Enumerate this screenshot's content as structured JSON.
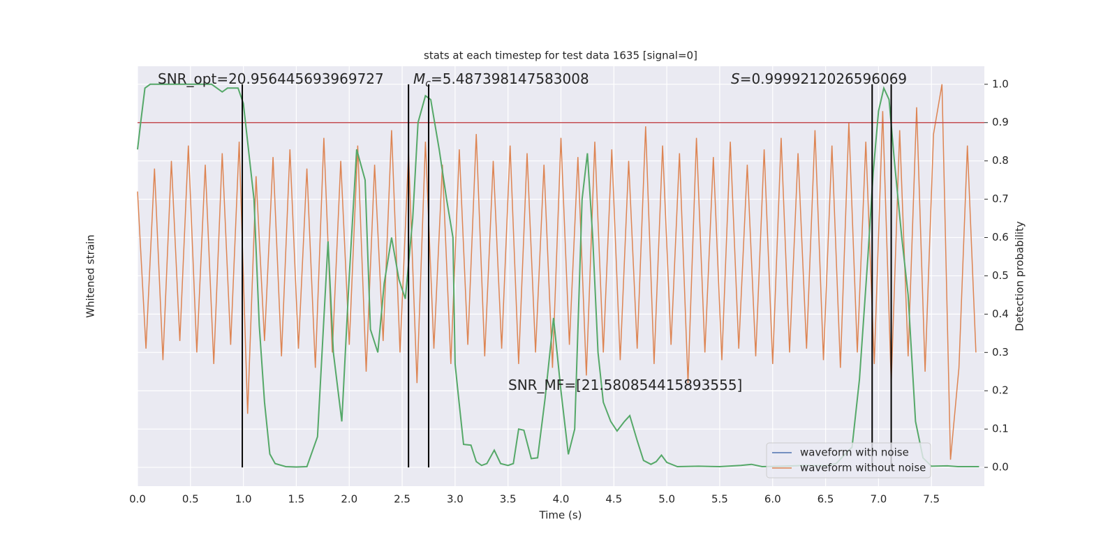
{
  "chart_data": {
    "type": "line",
    "title": "stats at each timestep for test data 1635 [signal=0]",
    "xlabel": "Time (s)",
    "ylabel": "Whitened strain",
    "y2label": "Detection probability",
    "xlim": [
      0,
      8.0
    ],
    "xticks": [
      {
        "value": 0,
        "label": "0.0"
      },
      0.5,
      {
        "value": 1,
        "label": "1.0"
      },
      1.5,
      {
        "value": 2,
        "label": "2.0"
      },
      2.5,
      {
        "value": 3,
        "label": "3.0"
      },
      3.5,
      {
        "value": 4,
        "label": "4.0"
      },
      4.5,
      {
        "value": 5,
        "label": "5.0"
      },
      5.5,
      {
        "value": 6,
        "label": "6.0"
      },
      6.5,
      {
        "value": 7,
        "label": "7.0"
      },
      7.5
    ],
    "y2lim": [
      -0.049,
      1.047
    ],
    "y2ticks": [
      {
        "value": 0,
        "label": "0.0"
      },
      0.1,
      0.2,
      0.3,
      0.4,
      0.5,
      0.6,
      0.7,
      0.8,
      0.9,
      {
        "value": 1,
        "label": "1.0"
      }
    ],
    "grid": true,
    "legend": "lower right",
    "series": [
      {
        "name": "waveform with noise",
        "color": "#4c72b0"
      },
      {
        "name": "waveform without noise",
        "color": "#dd8452",
        "axis": "y2",
        "x": [
          0,
          0.08,
          0.16,
          0.24,
          0.32,
          0.4,
          0.48,
          0.56,
          0.64,
          0.72,
          0.8,
          0.88,
          0.96,
          1.04,
          1.12,
          1.2,
          1.28,
          1.36,
          1.44,
          1.52,
          1.6,
          1.68,
          1.76,
          1.84,
          1.92,
          2,
          2.08,
          2.16,
          2.24,
          2.32,
          2.4,
          2.48,
          2.56,
          2.64,
          2.72,
          2.8,
          2.88,
          2.96,
          3.04,
          3.12,
          3.2,
          3.28,
          3.36,
          3.44,
          3.52,
          3.6,
          3.68,
          3.76,
          3.84,
          3.92,
          4,
          4.08,
          4.16,
          4.24,
          4.32,
          4.4,
          4.48,
          4.56,
          4.64,
          4.72,
          4.8,
          4.88,
          4.96,
          5.04,
          5.12,
          5.2,
          5.28,
          5.36,
          5.44,
          5.52,
          5.6,
          5.68,
          5.76,
          5.84,
          5.92,
          6,
          6.08,
          6.16,
          6.24,
          6.32,
          6.4,
          6.48,
          6.56,
          6.64,
          6.72,
          6.8,
          6.88,
          6.96,
          7.04,
          7.12,
          7.2,
          7.28,
          7.36,
          7.44,
          7.52,
          7.6,
          7.68,
          7.76,
          7.84,
          7.92
        ],
        "values": [
          0.72,
          0.31,
          0.78,
          0.28,
          0.8,
          0.33,
          0.84,
          0.3,
          0.79,
          0.27,
          0.82,
          0.32,
          0.85,
          0.14,
          0.76,
          0.33,
          0.81,
          0.29,
          0.83,
          0.31,
          0.78,
          0.26,
          0.86,
          0.3,
          0.8,
          0.32,
          0.84,
          0.25,
          0.79,
          0.33,
          0.88,
          0.3,
          0.82,
          0.22,
          0.85,
          0.31,
          0.79,
          0.27,
          0.83,
          0.32,
          0.87,
          0.29,
          0.8,
          0.31,
          0.84,
          0.27,
          0.82,
          0.3,
          0.79,
          0.26,
          0.86,
          0.32,
          0.81,
          0.24,
          0.85,
          0.3,
          0.83,
          0.28,
          0.8,
          0.31,
          0.89,
          0.27,
          0.84,
          0.32,
          0.82,
          0.22,
          0.86,
          0.3,
          0.81,
          0.28,
          0.85,
          0.31,
          0.79,
          0.29,
          0.83,
          0.27,
          0.86,
          0.3,
          0.82,
          0.31,
          0.88,
          0.28,
          0.84,
          0.26,
          0.9,
          0.3,
          0.85,
          0.27,
          0.93,
          0.22,
          0.88,
          0.29,
          0.94,
          0.25,
          0.87,
          1.0,
          0.02,
          0.26,
          0.84,
          0.3
        ]
      }
    ],
    "probability": {
      "color": "#55a868",
      "axis": "y2",
      "x": [
        0,
        0.03,
        0.07,
        0.12,
        0.3,
        0.5,
        0.7,
        0.8,
        0.85,
        0.95,
        1.0,
        1.1,
        1.15,
        1.2,
        1.25,
        1.3,
        1.4,
        1.5,
        1.6,
        1.7,
        1.8,
        1.85,
        1.93,
        2.0,
        2.07,
        2.15,
        2.2,
        2.27,
        2.33,
        2.4,
        2.47,
        2.53,
        2.6,
        2.65,
        2.72,
        2.77,
        2.85,
        2.92,
        2.98,
        3.0,
        3.03,
        3.08,
        3.15,
        3.2,
        3.25,
        3.3,
        3.37,
        3.43,
        3.5,
        3.55,
        3.6,
        3.65,
        3.72,
        3.78,
        3.85,
        3.93,
        4.0,
        4.07,
        4.13,
        4.2,
        4.25,
        4.3,
        4.35,
        4.4,
        4.47,
        4.53,
        4.6,
        4.65,
        4.72,
        4.78,
        4.85,
        4.9,
        4.95,
        5.0,
        5.1,
        5.3,
        5.5,
        5.7,
        5.8,
        5.9,
        6.1,
        6.3,
        6.5,
        6.6,
        6.75,
        6.82,
        6.9,
        6.95,
        7.0,
        7.05,
        7.1,
        7.15,
        7.22,
        7.28,
        7.35,
        7.42,
        7.5,
        7.65,
        7.75,
        7.95
      ],
      "values": [
        0.83,
        0.9,
        0.99,
        1.0,
        1.0,
        1.0,
        1.0,
        0.98,
        0.99,
        0.99,
        0.95,
        0.7,
        0.37,
        0.17,
        0.035,
        0.01,
        0.002,
        0.001,
        0.002,
        0.08,
        0.59,
        0.3,
        0.12,
        0.5,
        0.83,
        0.75,
        0.36,
        0.3,
        0.48,
        0.6,
        0.49,
        0.44,
        0.65,
        0.9,
        0.97,
        0.96,
        0.83,
        0.7,
        0.6,
        0.27,
        0.19,
        0.06,
        0.058,
        0.015,
        0.005,
        0.01,
        0.045,
        0.01,
        0.005,
        0.01,
        0.1,
        0.097,
        0.023,
        0.025,
        0.18,
        0.39,
        0.2,
        0.034,
        0.1,
        0.7,
        0.82,
        0.6,
        0.3,
        0.17,
        0.12,
        0.095,
        0.12,
        0.135,
        0.07,
        0.018,
        0.008,
        0.015,
        0.032,
        0.013,
        0.002,
        0.003,
        0.002,
        0.005,
        0.008,
        0.002,
        0.003,
        0.005,
        0.004,
        0.01,
        0.053,
        0.23,
        0.55,
        0.77,
        0.93,
        0.99,
        0.96,
        0.8,
        0.6,
        0.45,
        0.12,
        0.025,
        0.003,
        0.004,
        0.002,
        0.002
      ]
    },
    "threshold": {
      "value": 0.9,
      "color": "#c44e52"
    },
    "vlines": {
      "values": [
        0.99,
        2.56,
        2.75,
        6.94,
        7.12
      ],
      "color": "#000000"
    },
    "annotations": [
      {
        "text": "SNR_opt=20.956445693969727"
      },
      {
        "symbol": "M",
        "subscript": "c",
        "text": "=5.487398147583008"
      },
      {
        "symbol": "S",
        "text": "=0.9999212026596069"
      },
      {
        "text": "SNR_MF=[21.580854415893555]"
      }
    ]
  }
}
